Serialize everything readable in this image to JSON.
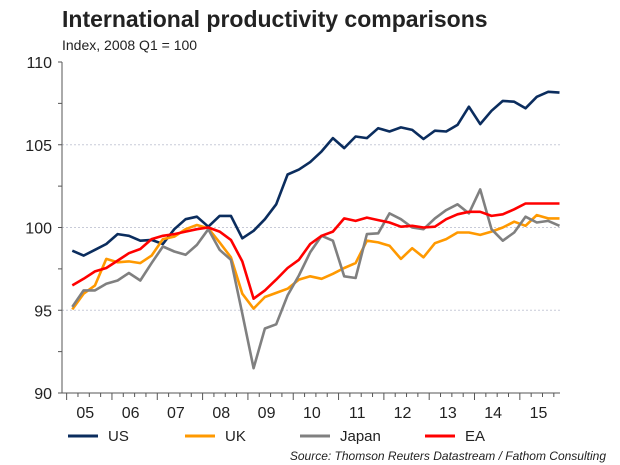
{
  "chart_data": {
    "type": "line",
    "title": "International productivity comparisons",
    "subtitle": "Index, 2008 Q1 = 100",
    "source": "Source: Thomson Reuters Datastream / Fathom Consulting",
    "xlabel": "",
    "ylabel": "",
    "ylim": [
      90,
      110
    ],
    "yticks": [
      "90",
      "95",
      "100",
      "105",
      "110"
    ],
    "yvalues": [
      90,
      95,
      100,
      105,
      110
    ],
    "gridlines": [
      95,
      100,
      105,
      110
    ],
    "x_start": "2005 Q1",
    "x_frequency": "quarterly",
    "xtick_labels": [
      "05",
      "06",
      "07",
      "08",
      "09",
      "10",
      "11",
      "12",
      "13",
      "14",
      "15"
    ],
    "legend_position": "bottom",
    "series": [
      {
        "name": "US",
        "color": "#0b2d5e",
        "values": [
          98.6,
          98.3,
          98.65,
          99.0,
          99.6,
          99.5,
          99.2,
          99.25,
          99.0,
          99.9,
          100.5,
          100.65,
          100.05,
          100.7,
          100.7,
          99.35,
          99.8,
          100.5,
          101.4,
          103.2,
          103.5,
          103.95,
          104.6,
          105.4,
          104.8,
          105.5,
          105.4,
          106.0,
          105.8,
          106.05,
          105.9,
          105.35,
          105.85,
          105.8,
          106.2,
          107.3,
          106.25,
          107.05,
          107.65,
          107.6,
          107.2,
          107.9,
          108.2,
          108.15
        ]
      },
      {
        "name": "UK",
        "color": "#ff9900",
        "values": [
          95.05,
          96.0,
          96.5,
          98.1,
          97.9,
          97.95,
          97.85,
          98.3,
          99.3,
          99.45,
          99.9,
          100.15,
          99.95,
          99.1,
          98.2,
          96.0,
          95.1,
          95.8,
          96.05,
          96.3,
          96.85,
          97.05,
          96.9,
          97.2,
          97.55,
          97.85,
          99.2,
          99.1,
          98.9,
          98.1,
          98.75,
          98.2,
          99.05,
          99.3,
          99.7,
          99.7,
          99.55,
          99.75,
          100.0,
          100.35,
          100.1,
          100.75,
          100.55,
          100.55
        ]
      },
      {
        "name": "Japan",
        "color": "#808080",
        "values": [
          95.2,
          96.2,
          96.2,
          96.6,
          96.8,
          97.25,
          96.8,
          97.85,
          98.85,
          98.55,
          98.35,
          98.95,
          99.9,
          98.65,
          98.05,
          94.8,
          91.5,
          93.9,
          94.15,
          95.9,
          97.1,
          98.5,
          99.5,
          99.2,
          97.05,
          96.95,
          99.6,
          99.65,
          100.85,
          100.5,
          100.0,
          99.9,
          100.55,
          101.05,
          101.4,
          100.85,
          102.3,
          99.9,
          99.2,
          99.7,
          100.65,
          100.3,
          100.4,
          100.1
        ]
      },
      {
        "name": "EA",
        "color": "#ff0000",
        "values": [
          96.5,
          96.9,
          97.35,
          97.55,
          98.0,
          98.45,
          98.7,
          99.3,
          99.5,
          99.6,
          99.75,
          99.9,
          100.0,
          99.75,
          99.25,
          97.95,
          95.7,
          96.2,
          96.85,
          97.55,
          98.05,
          99.0,
          99.5,
          99.75,
          100.55,
          100.4,
          100.6,
          100.45,
          100.3,
          100.05,
          100.1,
          100.0,
          100.05,
          100.5,
          100.8,
          100.95,
          100.95,
          100.7,
          100.8,
          101.1,
          101.45,
          101.45,
          101.45,
          101.45
        ]
      }
    ]
  }
}
